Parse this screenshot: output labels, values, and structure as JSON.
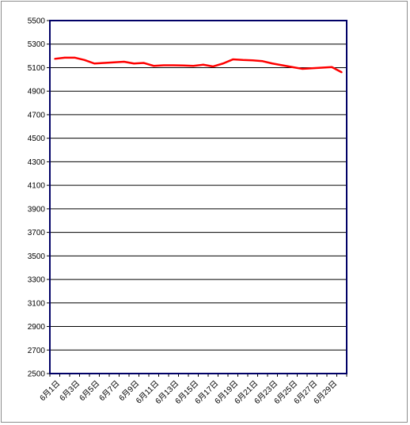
{
  "chart_data": {
    "type": "line",
    "title": "",
    "xlabel": "",
    "ylabel": "",
    "ylim": [
      2500,
      5500
    ],
    "yticks": [
      2500,
      2700,
      2900,
      3100,
      3300,
      3500,
      3700,
      3900,
      4100,
      4300,
      4500,
      4700,
      4900,
      5100,
      5300,
      5500
    ],
    "grid": true,
    "legend": "none",
    "categories": [
      "6月1日",
      "6月2日",
      "6月3日",
      "6月4日",
      "6月5日",
      "6月6日",
      "6月7日",
      "6月8日",
      "6月9日",
      "6月10日",
      "6月11日",
      "6月12日",
      "6月13日",
      "6月14日",
      "6月15日",
      "6月16日",
      "6月17日",
      "6月18日",
      "6月19日",
      "6月20日",
      "6月21日",
      "6月22日",
      "6月23日",
      "6月24日",
      "6月25日",
      "6月26日",
      "6月27日",
      "6月28日",
      "6月29日",
      "6月30日"
    ],
    "xtick_labels": [
      "6月1日",
      "6月3日",
      "6月5日",
      "6月7日",
      "6月9日",
      "6月11日",
      "6月13日",
      "6月15日",
      "6月17日",
      "6月19日",
      "6月21日",
      "6月23日",
      "6月25日",
      "6月27日",
      "6月29日"
    ],
    "series": [
      {
        "values": [
          5175,
          5185,
          5185,
          5165,
          5135,
          5140,
          5145,
          5150,
          5135,
          5140,
          5115,
          5120,
          5120,
          5118,
          5115,
          5125,
          5110,
          5135,
          5170,
          5165,
          5162,
          5155,
          5135,
          5120,
          5105,
          5090,
          5095,
          5100,
          5105,
          5060
        ],
        "color": "#ff0000"
      }
    ]
  }
}
